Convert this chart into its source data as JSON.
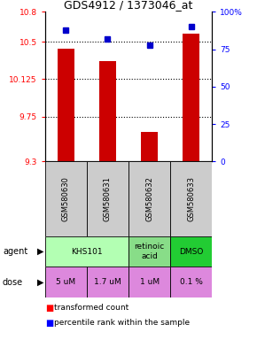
{
  "title": "GDS4912 / 1373046_at",
  "samples": [
    "GSM580630",
    "GSM580631",
    "GSM580632",
    "GSM580633"
  ],
  "red_values": [
    10.43,
    10.31,
    9.6,
    10.58
  ],
  "blue_values": [
    88,
    82,
    78,
    90
  ],
  "ylim_left": [
    9.3,
    10.8
  ],
  "ylim_right": [
    0,
    100
  ],
  "left_ticks": [
    9.3,
    9.75,
    10.125,
    10.5,
    10.8
  ],
  "right_ticks": [
    0,
    25,
    50,
    75,
    100
  ],
  "left_tick_labels": [
    "9.3",
    "9.75",
    "10.125",
    "10.5",
    "10.8"
  ],
  "right_tick_labels": [
    "0",
    "25",
    "50",
    "75",
    "100%"
  ],
  "hline_values": [
    9.75,
    10.125,
    10.5
  ],
  "agent_data": [
    [
      0,
      2,
      "KHS101",
      "#b3ffb3"
    ],
    [
      2,
      1,
      "retinoic\nacid",
      "#88dd88"
    ],
    [
      3,
      1,
      "DMSO",
      "#22cc33"
    ]
  ],
  "dose_labels": [
    "5 uM",
    "1.7 uM",
    "1 uM",
    "0.1 %"
  ],
  "dose_color": "#dd88dd",
  "bar_color": "#cc0000",
  "dot_color": "#0000cc",
  "legend_red": "transformed count",
  "legend_blue": "percentile rank within the sample",
  "sample_bg": "#cccccc"
}
